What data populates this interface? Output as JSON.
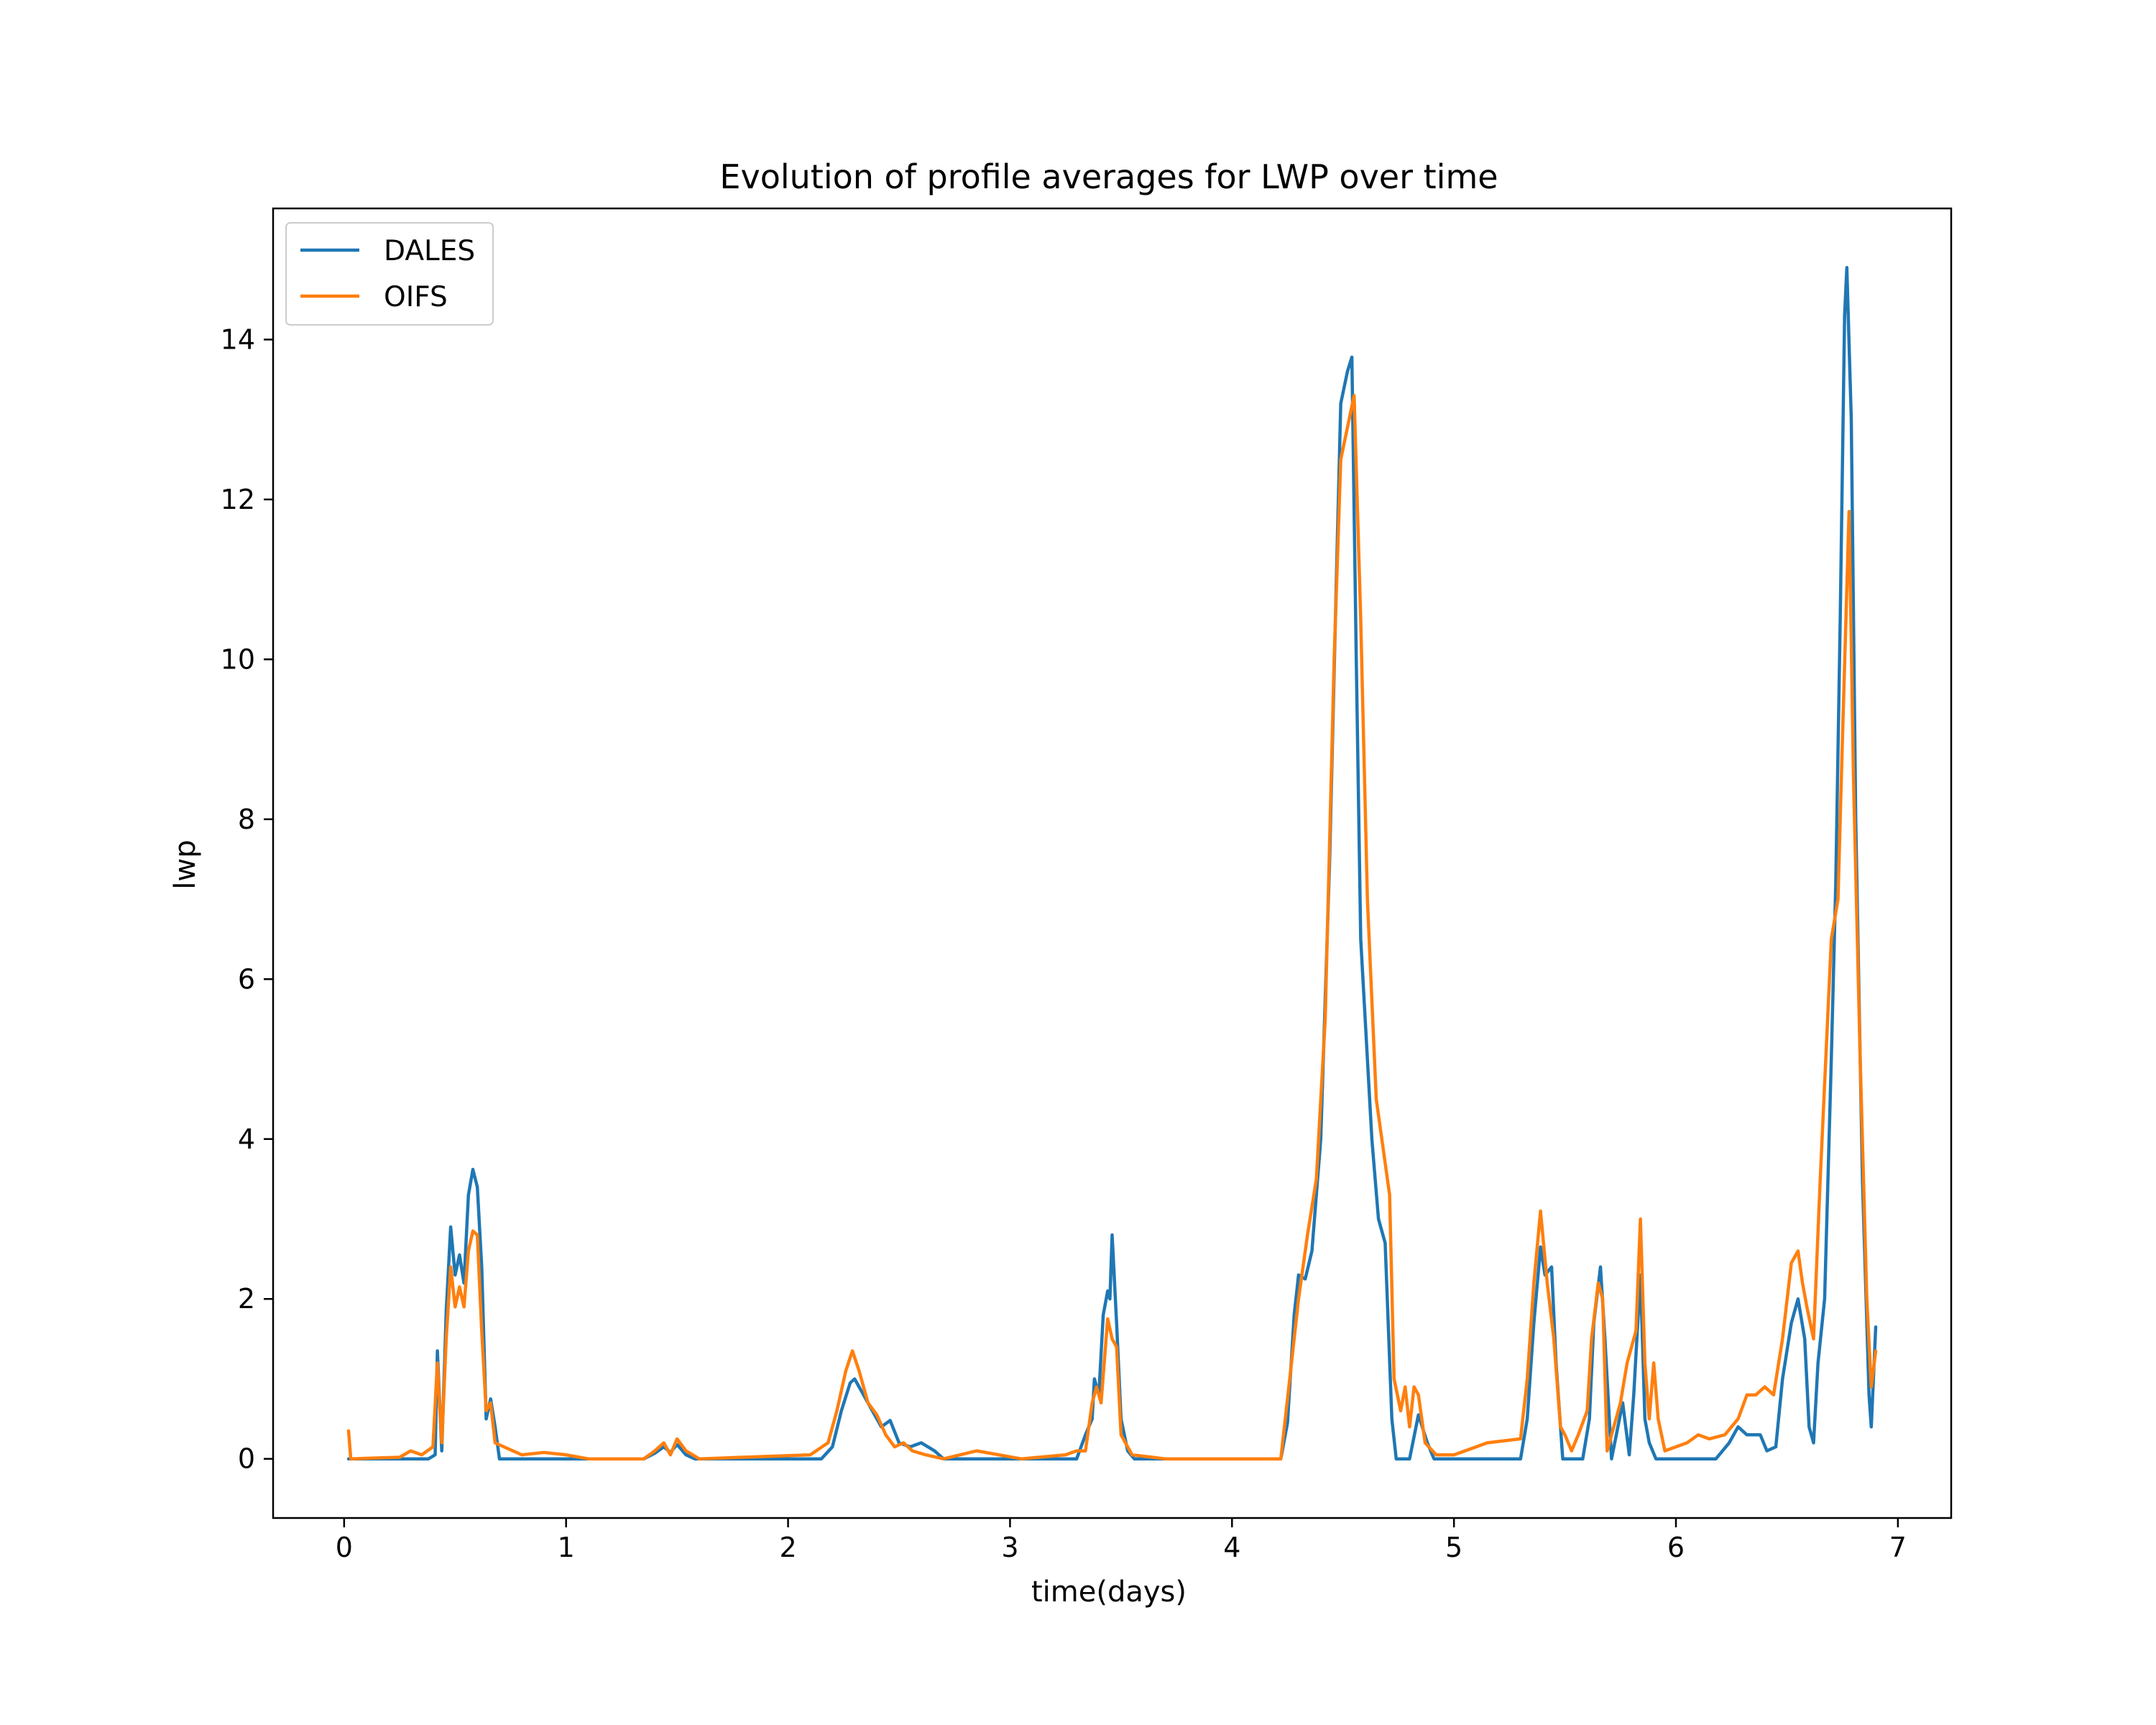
{
  "chart_data": {
    "type": "line",
    "title": "Evolution of profile averages for LWP over time",
    "xlabel": "time(days)",
    "ylabel": "lwp",
    "xlim": [
      -0.32,
      7.24
    ],
    "ylim": [
      -0.74,
      15.64
    ],
    "xticks": [
      0,
      1,
      2,
      3,
      4,
      5,
      6,
      7
    ],
    "yticks": [
      0,
      2,
      4,
      6,
      8,
      10,
      12,
      14
    ],
    "grid": false,
    "legend_position": "top-left",
    "series": [
      {
        "name": "DALES",
        "color": "#1f77b4",
        "points": [
          [
            0.02,
            0.0
          ],
          [
            0.38,
            0.0
          ],
          [
            0.41,
            0.05
          ],
          [
            0.42,
            1.35
          ],
          [
            0.44,
            0.1
          ],
          [
            0.46,
            1.85
          ],
          [
            0.48,
            2.9
          ],
          [
            0.5,
            2.3
          ],
          [
            0.52,
            2.55
          ],
          [
            0.54,
            2.2
          ],
          [
            0.56,
            3.3
          ],
          [
            0.58,
            3.62
          ],
          [
            0.6,
            3.4
          ],
          [
            0.62,
            2.4
          ],
          [
            0.64,
            0.5
          ],
          [
            0.66,
            0.75
          ],
          [
            0.68,
            0.4
          ],
          [
            0.7,
            0.0
          ],
          [
            1.35,
            0.0
          ],
          [
            1.4,
            0.07
          ],
          [
            1.44,
            0.15
          ],
          [
            1.47,
            0.08
          ],
          [
            1.5,
            0.18
          ],
          [
            1.54,
            0.05
          ],
          [
            1.58,
            0.0
          ],
          [
            2.15,
            0.0
          ],
          [
            2.2,
            0.15
          ],
          [
            2.24,
            0.6
          ],
          [
            2.28,
            0.95
          ],
          [
            2.3,
            1.0
          ],
          [
            2.34,
            0.8
          ],
          [
            2.38,
            0.6
          ],
          [
            2.42,
            0.4
          ],
          [
            2.46,
            0.48
          ],
          [
            2.5,
            0.2
          ],
          [
            2.55,
            0.15
          ],
          [
            2.6,
            0.2
          ],
          [
            2.66,
            0.1
          ],
          [
            2.7,
            0.0
          ],
          [
            3.3,
            0.0
          ],
          [
            3.34,
            0.3
          ],
          [
            3.37,
            0.5
          ],
          [
            3.38,
            1.0
          ],
          [
            3.4,
            0.8
          ],
          [
            3.42,
            1.8
          ],
          [
            3.44,
            2.1
          ],
          [
            3.45,
            2.0
          ],
          [
            3.46,
            2.8
          ],
          [
            3.48,
            1.7
          ],
          [
            3.5,
            0.5
          ],
          [
            3.53,
            0.1
          ],
          [
            3.56,
            0.0
          ],
          [
            4.22,
            0.0
          ],
          [
            4.25,
            0.45
          ],
          [
            4.28,
            1.8
          ],
          [
            4.3,
            2.3
          ],
          [
            4.33,
            2.25
          ],
          [
            4.36,
            2.6
          ],
          [
            4.4,
            4.0
          ],
          [
            4.44,
            7.5
          ],
          [
            4.47,
            11.0
          ],
          [
            4.49,
            13.2
          ],
          [
            4.52,
            13.6
          ],
          [
            4.54,
            13.78
          ],
          [
            4.56,
            10.0
          ],
          [
            4.58,
            6.5
          ],
          [
            4.6,
            5.5
          ],
          [
            4.63,
            4.0
          ],
          [
            4.66,
            3.0
          ],
          [
            4.69,
            2.7
          ],
          [
            4.72,
            0.5
          ],
          [
            4.74,
            0.0
          ],
          [
            4.8,
            0.0
          ],
          [
            4.84,
            0.55
          ],
          [
            4.88,
            0.2
          ],
          [
            4.91,
            0.0
          ],
          [
            5.3,
            0.0
          ],
          [
            5.33,
            0.5
          ],
          [
            5.36,
            1.7
          ],
          [
            5.39,
            2.65
          ],
          [
            5.41,
            2.3
          ],
          [
            5.44,
            2.4
          ],
          [
            5.46,
            1.2
          ],
          [
            5.49,
            0.0
          ],
          [
            5.58,
            0.0
          ],
          [
            5.61,
            0.5
          ],
          [
            5.63,
            1.7
          ],
          [
            5.66,
            2.4
          ],
          [
            5.68,
            1.5
          ],
          [
            5.71,
            0.0
          ],
          [
            5.76,
            0.7
          ],
          [
            5.79,
            0.05
          ],
          [
            5.81,
            0.8
          ],
          [
            5.84,
            2.3
          ],
          [
            5.86,
            0.5
          ],
          [
            5.88,
            0.2
          ],
          [
            5.91,
            0.0
          ],
          [
            6.18,
            0.0
          ],
          [
            6.24,
            0.2
          ],
          [
            6.28,
            0.4
          ],
          [
            6.32,
            0.3
          ],
          [
            6.38,
            0.3
          ],
          [
            6.41,
            0.1
          ],
          [
            6.45,
            0.15
          ],
          [
            6.48,
            1.0
          ],
          [
            6.52,
            1.7
          ],
          [
            6.55,
            2.0
          ],
          [
            6.58,
            1.5
          ],
          [
            6.6,
            0.4
          ],
          [
            6.62,
            0.2
          ],
          [
            6.64,
            1.2
          ],
          [
            6.67,
            2.0
          ],
          [
            6.7,
            5.0
          ],
          [
            6.72,
            7.2
          ],
          [
            6.74,
            10.5
          ],
          [
            6.76,
            14.3
          ],
          [
            6.77,
            14.9
          ],
          [
            6.79,
            13.0
          ],
          [
            6.81,
            8.0
          ],
          [
            6.84,
            3.5
          ],
          [
            6.87,
            0.8
          ],
          [
            6.88,
            0.4
          ],
          [
            6.9,
            1.65
          ]
        ]
      },
      {
        "name": "OIFS",
        "color": "#ff7f0e",
        "points": [
          [
            0.02,
            0.35
          ],
          [
            0.03,
            0.0
          ],
          [
            0.25,
            0.02
          ],
          [
            0.3,
            0.1
          ],
          [
            0.35,
            0.05
          ],
          [
            0.4,
            0.15
          ],
          [
            0.42,
            1.2
          ],
          [
            0.44,
            0.2
          ],
          [
            0.46,
            1.5
          ],
          [
            0.48,
            2.4
          ],
          [
            0.5,
            1.9
          ],
          [
            0.52,
            2.15
          ],
          [
            0.54,
            1.9
          ],
          [
            0.56,
            2.6
          ],
          [
            0.58,
            2.85
          ],
          [
            0.6,
            2.8
          ],
          [
            0.62,
            1.6
          ],
          [
            0.64,
            0.6
          ],
          [
            0.66,
            0.7
          ],
          [
            0.68,
            0.2
          ],
          [
            0.72,
            0.15
          ],
          [
            0.8,
            0.05
          ],
          [
            0.9,
            0.08
          ],
          [
            1.0,
            0.05
          ],
          [
            1.1,
            0.0
          ],
          [
            1.35,
            0.0
          ],
          [
            1.4,
            0.1
          ],
          [
            1.44,
            0.2
          ],
          [
            1.47,
            0.05
          ],
          [
            1.5,
            0.25
          ],
          [
            1.54,
            0.1
          ],
          [
            1.6,
            0.0
          ],
          [
            2.1,
            0.05
          ],
          [
            2.18,
            0.2
          ],
          [
            2.22,
            0.6
          ],
          [
            2.26,
            1.1
          ],
          [
            2.29,
            1.35
          ],
          [
            2.32,
            1.1
          ],
          [
            2.36,
            0.7
          ],
          [
            2.4,
            0.55
          ],
          [
            2.44,
            0.3
          ],
          [
            2.48,
            0.15
          ],
          [
            2.52,
            0.2
          ],
          [
            2.56,
            0.1
          ],
          [
            2.62,
            0.05
          ],
          [
            2.7,
            0.0
          ],
          [
            2.85,
            0.1
          ],
          [
            2.95,
            0.05
          ],
          [
            3.05,
            0.0
          ],
          [
            3.25,
            0.05
          ],
          [
            3.3,
            0.1
          ],
          [
            3.34,
            0.1
          ],
          [
            3.37,
            0.7
          ],
          [
            3.39,
            0.9
          ],
          [
            3.41,
            0.7
          ],
          [
            3.44,
            1.75
          ],
          [
            3.46,
            1.5
          ],
          [
            3.48,
            1.4
          ],
          [
            3.5,
            0.3
          ],
          [
            3.55,
            0.05
          ],
          [
            3.7,
            0.0
          ],
          [
            4.22,
            0.0
          ],
          [
            4.26,
            1.0
          ],
          [
            4.3,
            2.0
          ],
          [
            4.34,
            2.8
          ],
          [
            4.38,
            3.5
          ],
          [
            4.42,
            5.5
          ],
          [
            4.46,
            10.0
          ],
          [
            4.49,
            12.5
          ],
          [
            4.52,
            12.9
          ],
          [
            4.55,
            13.3
          ],
          [
            4.58,
            10.5
          ],
          [
            4.61,
            7.0
          ],
          [
            4.65,
            4.5
          ],
          [
            4.69,
            3.7
          ],
          [
            4.71,
            3.3
          ],
          [
            4.73,
            1.0
          ],
          [
            4.76,
            0.6
          ],
          [
            4.78,
            0.9
          ],
          [
            4.8,
            0.4
          ],
          [
            4.82,
            0.9
          ],
          [
            4.84,
            0.8
          ],
          [
            4.87,
            0.2
          ],
          [
            4.92,
            0.05
          ],
          [
            5.0,
            0.05
          ],
          [
            5.05,
            0.1
          ],
          [
            5.15,
            0.2
          ],
          [
            5.3,
            0.25
          ],
          [
            5.33,
            1.0
          ],
          [
            5.36,
            2.2
          ],
          [
            5.39,
            3.1
          ],
          [
            5.42,
            2.2
          ],
          [
            5.45,
            1.5
          ],
          [
            5.48,
            0.4
          ],
          [
            5.5,
            0.3
          ],
          [
            5.53,
            0.1
          ],
          [
            5.56,
            0.3
          ],
          [
            5.6,
            0.6
          ],
          [
            5.62,
            1.5
          ],
          [
            5.65,
            2.2
          ],
          [
            5.67,
            2.0
          ],
          [
            5.69,
            0.1
          ],
          [
            5.72,
            0.4
          ],
          [
            5.75,
            0.7
          ],
          [
            5.78,
            1.2
          ],
          [
            5.82,
            1.6
          ],
          [
            5.84,
            3.0
          ],
          [
            5.86,
            1.2
          ],
          [
            5.88,
            0.5
          ],
          [
            5.9,
            1.2
          ],
          [
            5.92,
            0.5
          ],
          [
            5.95,
            0.1
          ],
          [
            6.05,
            0.2
          ],
          [
            6.1,
            0.3
          ],
          [
            6.15,
            0.25
          ],
          [
            6.22,
            0.3
          ],
          [
            6.28,
            0.5
          ],
          [
            6.32,
            0.8
          ],
          [
            6.36,
            0.8
          ],
          [
            6.4,
            0.9
          ],
          [
            6.44,
            0.8
          ],
          [
            6.48,
            1.5
          ],
          [
            6.52,
            2.45
          ],
          [
            6.55,
            2.6
          ],
          [
            6.57,
            2.2
          ],
          [
            6.59,
            1.9
          ],
          [
            6.62,
            1.5
          ],
          [
            6.65,
            3.5
          ],
          [
            6.7,
            6.5
          ],
          [
            6.73,
            7.0
          ],
          [
            6.75,
            9.0
          ],
          [
            6.78,
            11.85
          ],
          [
            6.8,
            8.5
          ],
          [
            6.83,
            5.0
          ],
          [
            6.86,
            2.0
          ],
          [
            6.88,
            0.9
          ],
          [
            6.9,
            1.35
          ]
        ]
      }
    ]
  }
}
